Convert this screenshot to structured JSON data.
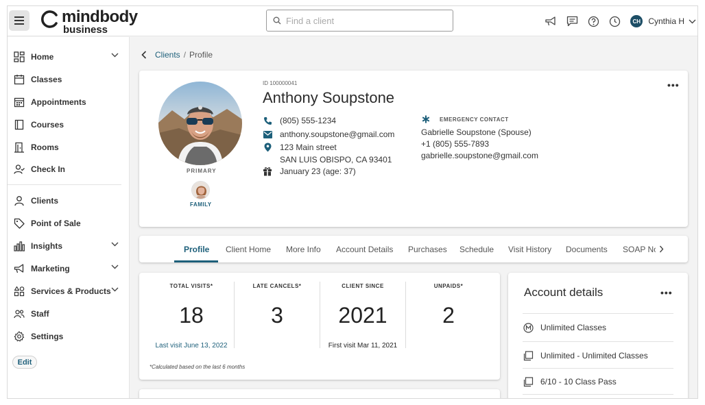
{
  "topbar": {
    "logo_word": "mindbody",
    "logo_sub": "business",
    "search_placeholder": "Find a client",
    "user_initials": "CH",
    "user_name": "Cynthia H"
  },
  "sidebar": {
    "items": [
      {
        "label": "Home",
        "icon": "home-grid-icon",
        "chevron": true
      },
      {
        "label": "Classes",
        "icon": "calendar-icon",
        "chevron": false
      },
      {
        "label": "Appointments",
        "icon": "calendar-grid-icon",
        "chevron": false
      },
      {
        "label": "Courses",
        "icon": "book-icon",
        "chevron": false
      },
      {
        "label": "Rooms",
        "icon": "door-icon",
        "chevron": false
      },
      {
        "label": "Check In",
        "icon": "user-check-icon",
        "chevron": false
      },
      {
        "label": "Clients",
        "icon": "user-icon",
        "chevron": false
      },
      {
        "label": "Point of Sale",
        "icon": "tag-icon",
        "chevron": false
      },
      {
        "label": "Insights",
        "icon": "bar-chart-icon",
        "chevron": true
      },
      {
        "label": "Marketing",
        "icon": "megaphone-icon",
        "chevron": true
      },
      {
        "label": "Services & Products",
        "icon": "shapes-icon",
        "chevron": true
      },
      {
        "label": "Staff",
        "icon": "users-icon",
        "chevron": false
      },
      {
        "label": "Settings",
        "icon": "gear-icon",
        "chevron": false
      }
    ],
    "edit_label": "Edit"
  },
  "breadcrumb": {
    "parent": "Clients",
    "separator": "/",
    "current": "Profile"
  },
  "profile": {
    "id": "ID 100000041",
    "name": "Anthony Soupstone",
    "primary_label": "PRIMARY",
    "family_label": "FAMILY",
    "phone": "(805) 555-1234",
    "email": "anthony.soupstone@gmail.com",
    "address_line1": "123 Main street",
    "address_line2": "SAN LUIS OBISPO, CA 93401",
    "birthday": "January 23 (age: 37)",
    "emergency": {
      "header": "EMERGENCY CONTACT",
      "name": "Gabrielle Soupstone (Spouse)",
      "phone": "+1 (805) 555-7893",
      "email": "gabrielle.soupstone@gmail.com"
    },
    "more": "•••"
  },
  "tabs": [
    "Profile",
    "Client Home",
    "More Info",
    "Account Details",
    "Purchases",
    "Schedule",
    "Visit History",
    "Documents",
    "SOAP No"
  ],
  "stats": {
    "total_visits_label": "TOTAL VISITS*",
    "total_visits_value": "18",
    "total_visits_sub": "Last visit June 13, 2022",
    "late_cancels_label": "LATE CANCELS*",
    "late_cancels_value": "3",
    "client_since_label": "CLIENT SINCE",
    "client_since_value": "2021",
    "client_since_sub": "First visit Mar 11, 2021",
    "unpaids_label": "UNPAIDS*",
    "unpaids_value": "2",
    "note": "*Calculated based on the last 6 months"
  },
  "account": {
    "title": "Account details",
    "more": "•••",
    "rows": [
      {
        "label": "Unlimited Classes",
        "icon": "membership-icon"
      },
      {
        "label": "Unlimited - Unlimited Classes",
        "icon": "pass-icon"
      },
      {
        "label": "6/10 - 10 Class Pass",
        "icon": "pass-icon"
      }
    ]
  },
  "colors": {
    "accent": "#1d5f7a",
    "background": "#f3f3f3",
    "card": "#ffffff"
  }
}
